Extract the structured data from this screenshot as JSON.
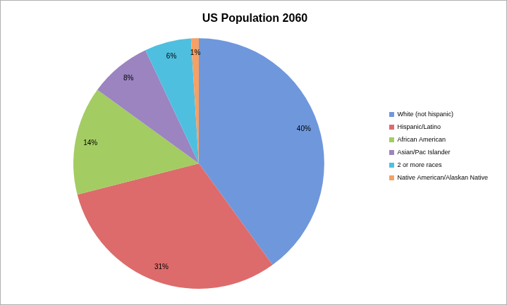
{
  "chart_data": {
    "type": "pie",
    "title": "US Population 2060",
    "categories": [
      "White (not hispanic)",
      "Hispanic/Latino",
      "African American",
      "Asian/Pac Islander",
      "2 or more races",
      "Native American/Alaskan Native"
    ],
    "values": [
      40,
      31,
      14,
      8,
      6,
      1
    ],
    "value_labels": [
      "40%",
      "31%",
      "14%",
      "8%",
      "6%",
      "1%"
    ],
    "colors": [
      "#6f97dc",
      "#dd6b6b",
      "#a3cc62",
      "#9b84c0",
      "#4fbfe0",
      "#f5a064"
    ],
    "legend": "right",
    "data_labels": true
  }
}
